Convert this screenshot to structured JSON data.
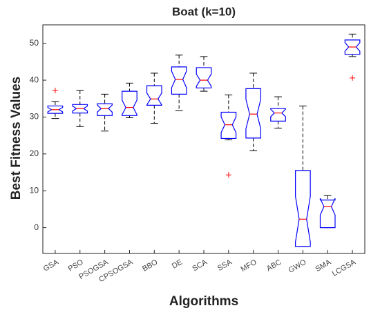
{
  "chart_data": {
    "type": "box",
    "title": "Boat  (k=10)",
    "xlabel": "Algorithms",
    "ylabel": "Best  Fitness  Values",
    "categories": [
      "GSA",
      "PSO",
      "PSOGSA",
      "CPSOGSA",
      "BBO",
      "DE",
      "SCA",
      "SSA",
      "MFO",
      "ABC",
      "GWO",
      "SMA",
      "LCGSA"
    ],
    "boxes": [
      {
        "low": 29.6,
        "q1": 31,
        "median": 32,
        "q3": 33,
        "high": 34.2,
        "outliers": [
          37.2
        ]
      },
      {
        "low": 27.4,
        "q1": 31.1,
        "median": 32.3,
        "q3": 33.4,
        "high": 37.2,
        "outliers": []
      },
      {
        "low": 26.2,
        "q1": 30.4,
        "median": 32.3,
        "q3": 33.6,
        "high": 36.2,
        "outliers": []
      },
      {
        "low": 29.8,
        "q1": 30.4,
        "median": 32.6,
        "q3": 37,
        "high": 39.2,
        "outliers": []
      },
      {
        "low": 28.3,
        "q1": 33.2,
        "median": 34.9,
        "q3": 38.5,
        "high": 41.9,
        "outliers": []
      },
      {
        "low": 31.7,
        "q1": 36.2,
        "median": 40.2,
        "q3": 43.6,
        "high": 46.8,
        "outliers": []
      },
      {
        "low": 37,
        "q1": 37.9,
        "median": 40,
        "q3": 43.4,
        "high": 46.4,
        "outliers": []
      },
      {
        "low": 23.8,
        "q1": 24.2,
        "median": 27.9,
        "q3": 31.3,
        "high": 36,
        "outliers": [
          14.3
        ]
      },
      {
        "low": 20.9,
        "q1": 24.3,
        "median": 30.8,
        "q3": 37.7,
        "high": 41.9,
        "outliers": []
      },
      {
        "low": 27,
        "q1": 28.9,
        "median": 31.1,
        "q3": 32.3,
        "high": 35.5,
        "outliers": []
      },
      {
        "low": -5.1,
        "q1": -5.1,
        "median": 2.3,
        "q3": 15.5,
        "high": 33,
        "outliers": []
      },
      {
        "low": 0,
        "q1": 0,
        "median": 5.7,
        "q3": 7.5,
        "high": 8.7,
        "outliers": []
      },
      {
        "low": 46.4,
        "q1": 47,
        "median": 49,
        "q3": 50.9,
        "high": 52.5,
        "outliers": [
          40.6
        ]
      }
    ],
    "box_color": "#0000ff",
    "median_color": "#ff0000",
    "whisker_color": "#000000",
    "outlier_color": "#ff0000",
    "notched": true,
    "ylim": [
      -7,
      55
    ],
    "yticks": [
      0,
      10,
      20,
      30,
      40,
      50
    ]
  }
}
